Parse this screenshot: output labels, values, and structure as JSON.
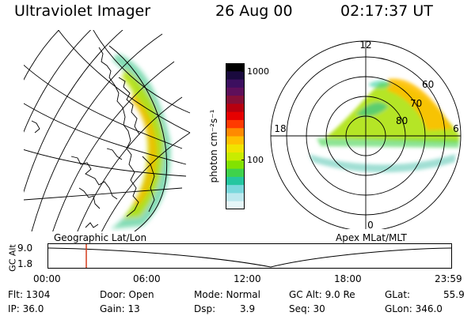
{
  "header": {
    "instrument": "Ultraviolet Imager",
    "date": "26 Aug 00",
    "time": "02:17:37 UT"
  },
  "left_panel": {
    "caption": "Geographic Lat/Lon"
  },
  "right_panel": {
    "caption": "Apex MLat/MLT",
    "mlt_labels": [
      "12",
      "18",
      "6",
      "0"
    ],
    "lat_labels": [
      "60",
      "70",
      "80"
    ]
  },
  "colorbar": {
    "unit_label": "photon cm⁻²s⁻¹",
    "tick_labels": [
      "1000",
      "100"
    ],
    "colors": [
      "#000000",
      "#1a0a3e",
      "#3c0f5f",
      "#5e0f5a",
      "#850f37",
      "#b7000f",
      "#e60000",
      "#ff3a00",
      "#ff8a00",
      "#ffc000",
      "#f0e400",
      "#c8ec00",
      "#82e200",
      "#3fd24c",
      "#25c6a0",
      "#7ad8dc",
      "#bde8ee",
      "#e6f6f8"
    ]
  },
  "timeline": {
    "axis_title": "GC Alt",
    "y_labels": [
      "9.0",
      "1.8"
    ],
    "x_labels": [
      "00:00",
      "06:00",
      "12:00",
      "18:00",
      "23:59"
    ],
    "marker_color": "#d43a1a"
  },
  "info": {
    "flt": "Flt: 1304",
    "ip": "IP: 36.0",
    "door": "Door: Open",
    "gain": "Gain: 13",
    "mode": "Mode: Normal",
    "dsp_label": "Dsp:",
    "dsp_value": "3.9",
    "gcalt": "GC Alt: 9.0 Re",
    "seq": "Seq: 30",
    "glat_label": "GLat:",
    "glat_value": "55.9",
    "glon": "GLon: 346.0"
  }
}
